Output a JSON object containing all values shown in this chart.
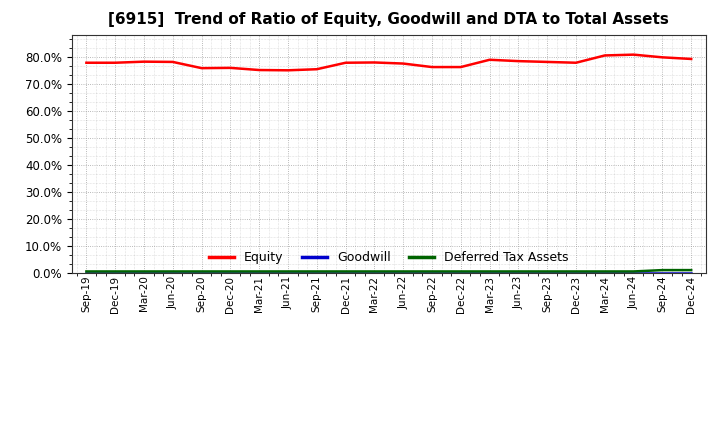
{
  "title": "[6915]  Trend of Ratio of Equity, Goodwill and DTA to Total Assets",
  "title_fontsize": 11,
  "x_labels": [
    "Sep-19",
    "Dec-19",
    "Mar-20",
    "Jun-20",
    "Sep-20",
    "Dec-20",
    "Mar-21",
    "Jun-21",
    "Sep-21",
    "Dec-21",
    "Mar-22",
    "Jun-22",
    "Sep-22",
    "Dec-22",
    "Mar-23",
    "Jun-23",
    "Sep-23",
    "Dec-23",
    "Mar-24",
    "Jun-24",
    "Sep-24",
    "Dec-24"
  ],
  "equity": [
    0.778,
    0.778,
    0.782,
    0.781,
    0.758,
    0.759,
    0.751,
    0.75,
    0.754,
    0.778,
    0.779,
    0.775,
    0.762,
    0.762,
    0.789,
    0.784,
    0.781,
    0.778,
    0.805,
    0.808,
    0.798,
    0.792
  ],
  "goodwill": [
    0.0,
    0.0,
    0.0,
    0.0,
    0.0,
    0.0,
    0.0,
    0.0,
    0.0,
    0.0,
    0.0,
    0.0,
    0.0,
    0.0,
    0.0,
    0.0,
    0.0,
    0.0,
    0.0,
    0.0,
    0.0,
    0.0
  ],
  "dta": [
    0.005,
    0.005,
    0.005,
    0.005,
    0.005,
    0.005,
    0.005,
    0.005,
    0.005,
    0.005,
    0.005,
    0.005,
    0.005,
    0.005,
    0.005,
    0.005,
    0.005,
    0.005,
    0.005,
    0.005,
    0.01,
    0.01
  ],
  "equity_color": "#ff0000",
  "goodwill_color": "#0000cd",
  "dta_color": "#006400",
  "ylim": [
    0.0,
    0.88
  ],
  "yticks": [
    0.0,
    0.1,
    0.2,
    0.3,
    0.4,
    0.5,
    0.6,
    0.7,
    0.8
  ],
  "background_color": "#ffffff",
  "plot_bg_color": "#ffffff",
  "grid_color": "#999999",
  "legend_labels": [
    "Equity",
    "Goodwill",
    "Deferred Tax Assets"
  ],
  "linewidth": 1.8
}
